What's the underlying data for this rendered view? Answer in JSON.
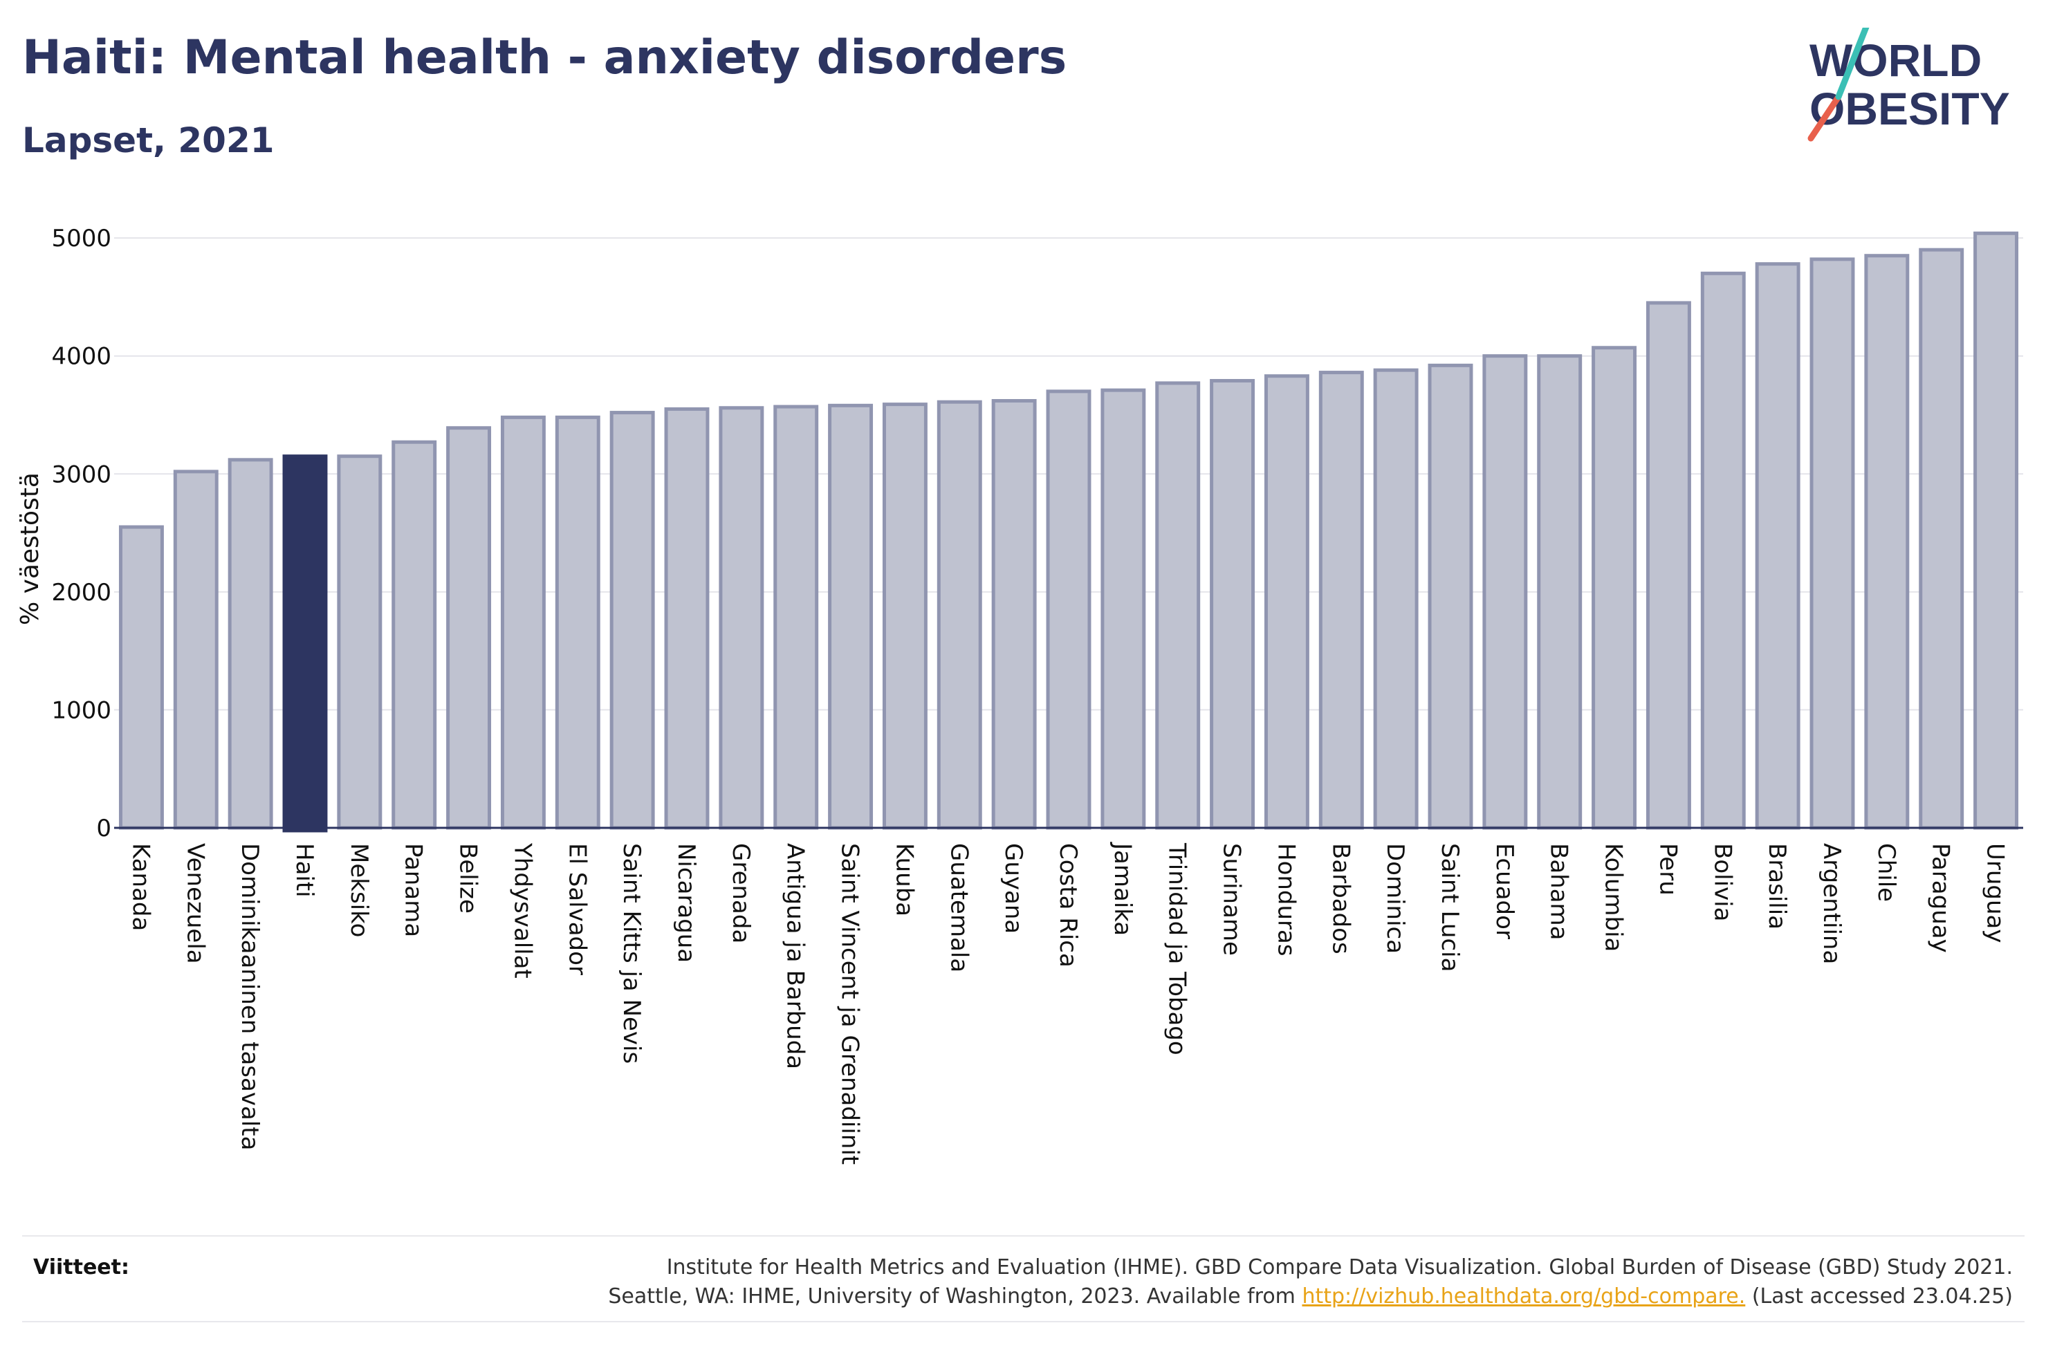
{
  "header": {
    "title": "Haiti: Mental health - anxiety disorders",
    "subtitle": "Lapset, 2021"
  },
  "logo": {
    "line1": "WORLD",
    "line2": "OBESITY"
  },
  "colors": {
    "bar": "#bfc2d0",
    "bar_border": "#9095b0",
    "highlight": "#2d3561",
    "text": "#2d3561",
    "link": "#e8a317",
    "logo_teal": "#3bbfb5",
    "logo_red": "#e8604c"
  },
  "chart_data": {
    "type": "bar",
    "ylabel": "% väestöstä",
    "ylim": [
      0,
      5200
    ],
    "yticks": [
      0,
      1000,
      2000,
      3000,
      4000,
      5000
    ],
    "grid": true,
    "highlight": "Haiti",
    "categories": [
      "Kanada",
      "Venezuela",
      "Dominikaaninen tasavalta",
      "Haiti",
      "Meksiko",
      "Panama",
      "Belize",
      "Yhdysvallat",
      "El Salvador",
      "Saint Kitts ja Nevis",
      "Nicaragua",
      "Grenada",
      "Antigua ja Barbuda",
      "Saint Vincent ja Grenadiinit",
      "Kuuba",
      "Guatemala",
      "Guyana",
      "Costa Rica",
      "Jamaika",
      "Trinidad ja Tobago",
      "Suriname",
      "Honduras",
      "Barbados",
      "Dominica",
      "Saint Lucia",
      "Ecuador",
      "Bahama",
      "Kolumbia",
      "Peru",
      "Bolivia",
      "Brasilia",
      "Argentiina",
      "Chile",
      "Paraguay",
      "Uruguay"
    ],
    "values": [
      2550,
      3020,
      3120,
      3150,
      3150,
      3270,
      3390,
      3480,
      3480,
      3520,
      3550,
      3560,
      3570,
      3580,
      3590,
      3610,
      3620,
      3700,
      3710,
      3770,
      3790,
      3830,
      3860,
      3880,
      3920,
      4000,
      4000,
      4070,
      4450,
      4700,
      4780,
      4820,
      4850,
      4900,
      5040
    ]
  },
  "footer": {
    "refs_label": "Viitteet:",
    "ref_line1": "Institute for Health Metrics and Evaluation (IHME). GBD Compare Data Visualization. Global Burden of Disease (GBD) Study 2021.",
    "ref_line2_pre": "Seattle, WA: IHME, University of Washington, 2023. Available from ",
    "ref_link": "http://vizhub.healthdata.org/gbd-compare.",
    "ref_line2_post": " (Last accessed 23.04.25)"
  }
}
